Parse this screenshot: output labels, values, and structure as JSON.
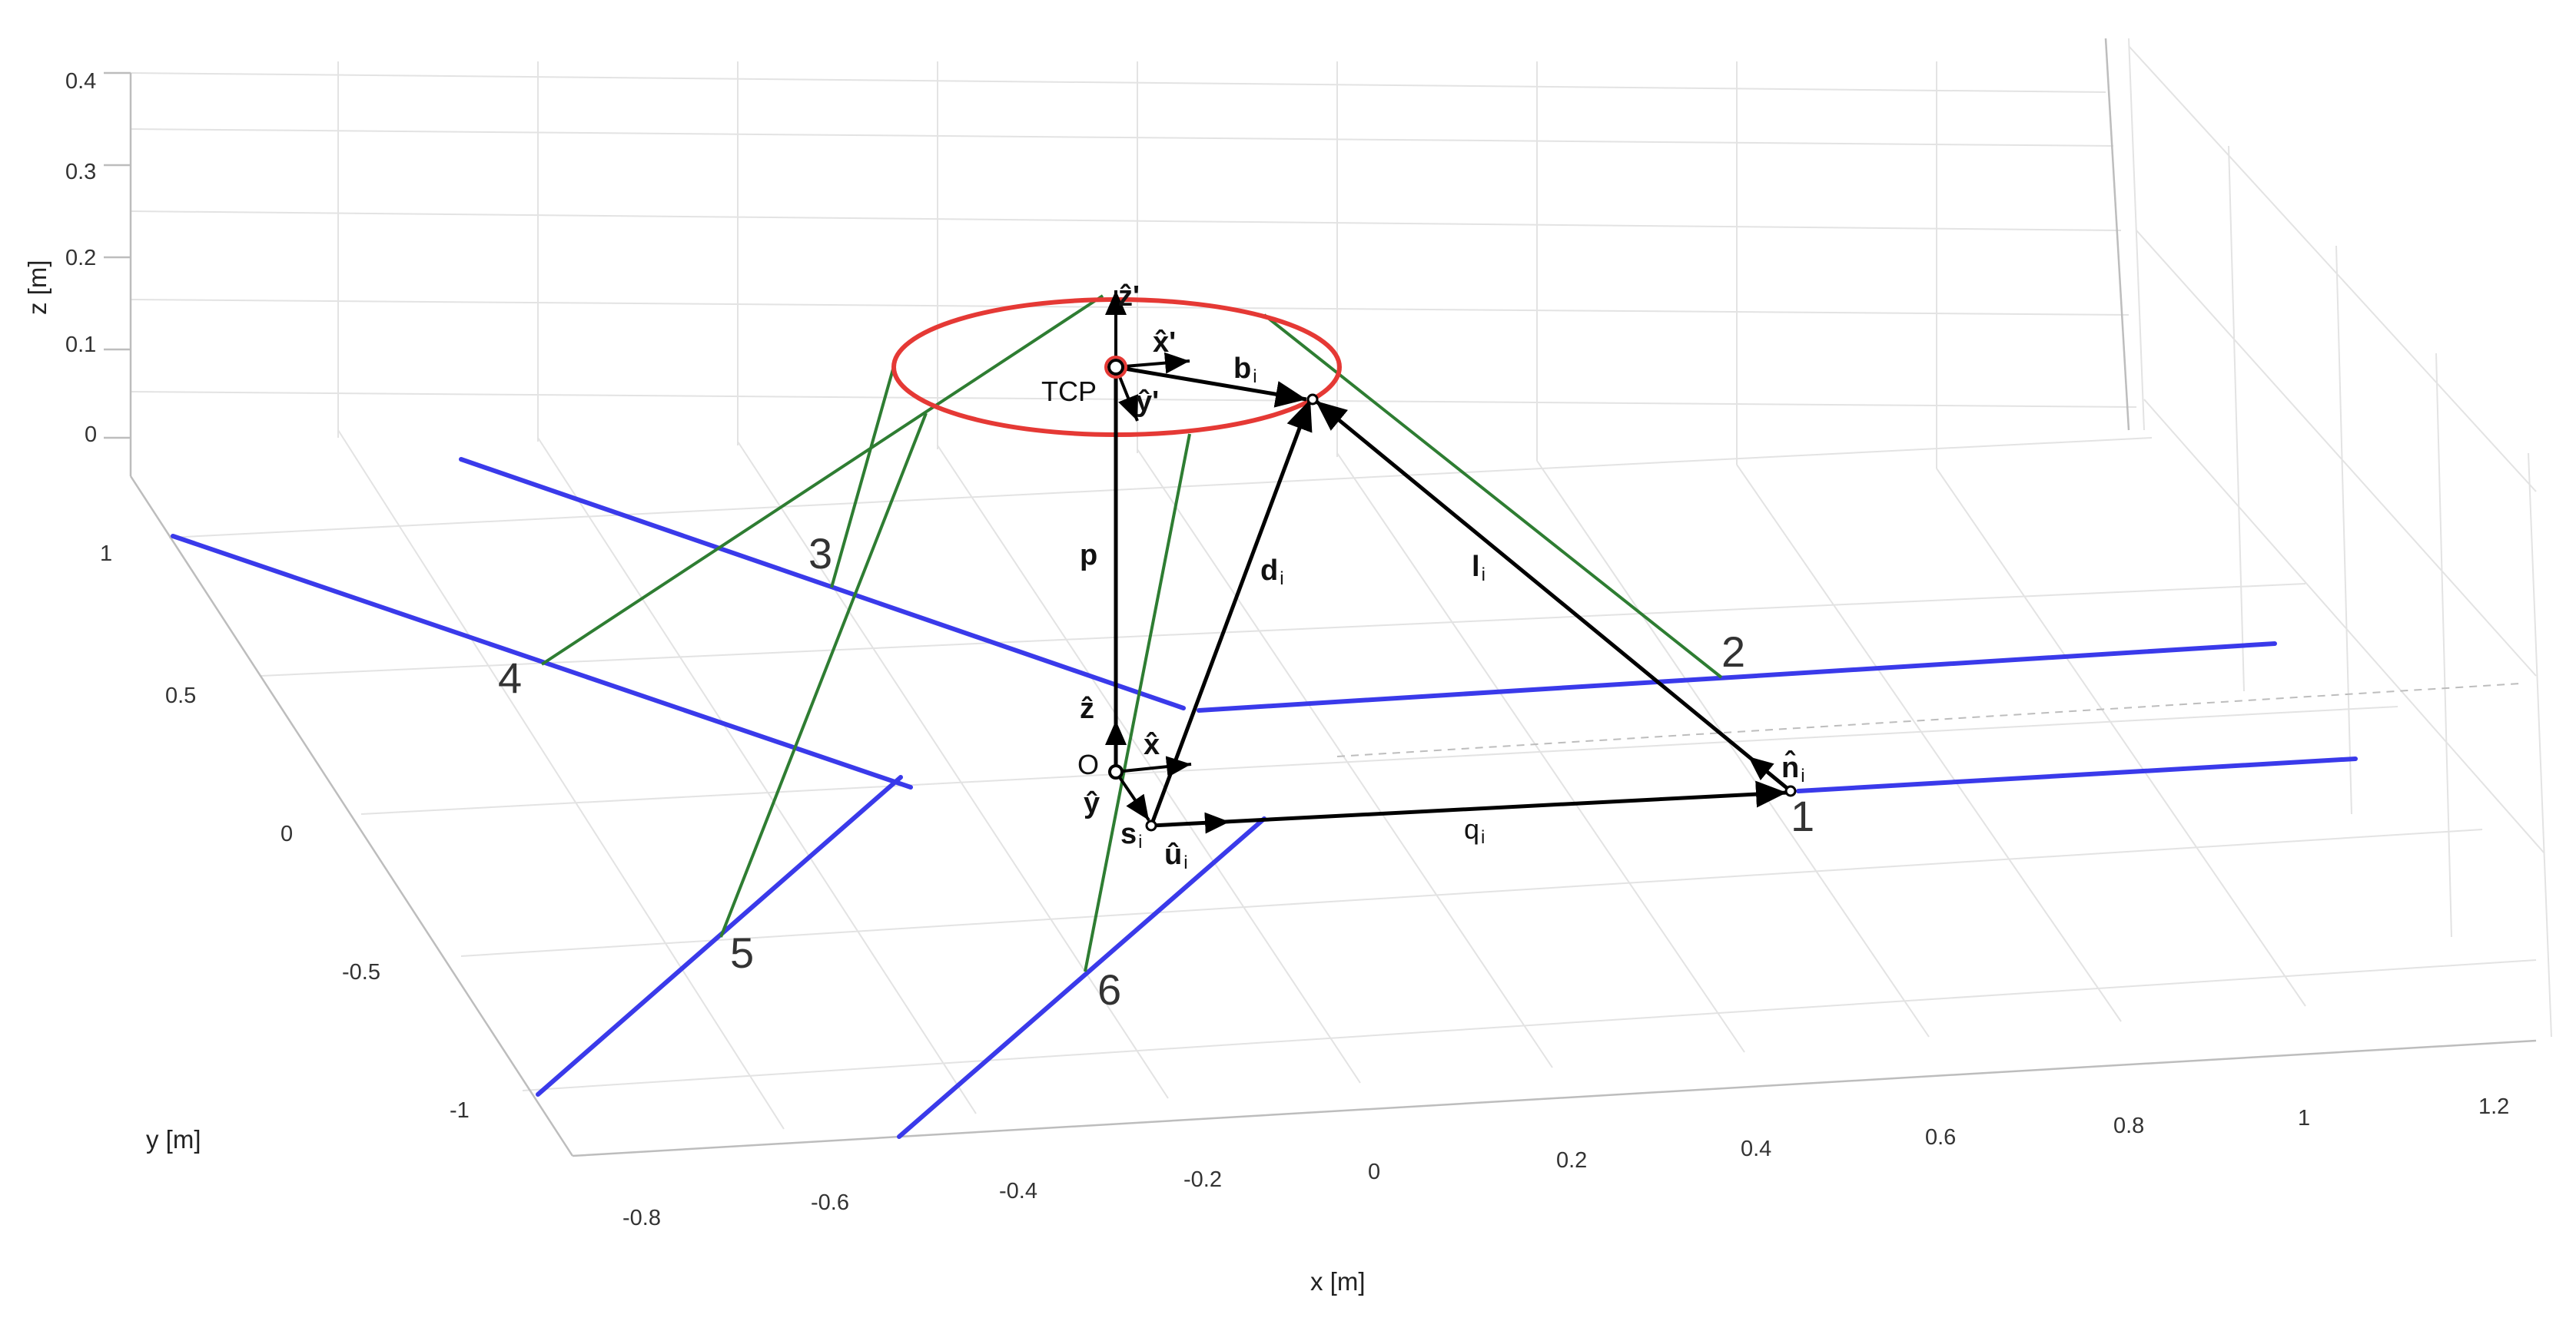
{
  "axes": {
    "x_label": "x [m]",
    "y_label": "y [m]",
    "z_label": "z [m]",
    "x_ticks": [
      "-0.8",
      "-0.6",
      "-0.4",
      "-0.2",
      "0",
      "0.2",
      "0.4",
      "0.6",
      "0.8",
      "1",
      "1.2"
    ],
    "y_ticks": [
      "1",
      "0.5",
      "0",
      "-0.5",
      "-1"
    ],
    "z_ticks": [
      "0.4",
      "0.3",
      "0.2",
      "0.1",
      "0"
    ]
  },
  "rail_numbers": [
    "1",
    "2",
    "3",
    "4",
    "5",
    "6"
  ],
  "labels": {
    "tcp": "TCP",
    "origin": "O",
    "z_prime": "ẑ'",
    "x_prime": "x̂'",
    "y_prime": "ŷ'",
    "z_hat": "ẑ",
    "x_hat": "x̂",
    "y_hat": "ŷ",
    "b": "b",
    "b_sub": "i",
    "p": "p",
    "d": "d",
    "d_sub": "i",
    "l": "l",
    "l_sub": "i",
    "q": "q",
    "q_sub": "i",
    "s": "s",
    "s_sub": "i",
    "u": "û",
    "u_sub": "i",
    "n": "n̂",
    "n_sub": "i"
  },
  "colors": {
    "rail": "#3a3aea",
    "cable": "#2e7d32",
    "platform": "#e53935",
    "vector": "#000000"
  }
}
